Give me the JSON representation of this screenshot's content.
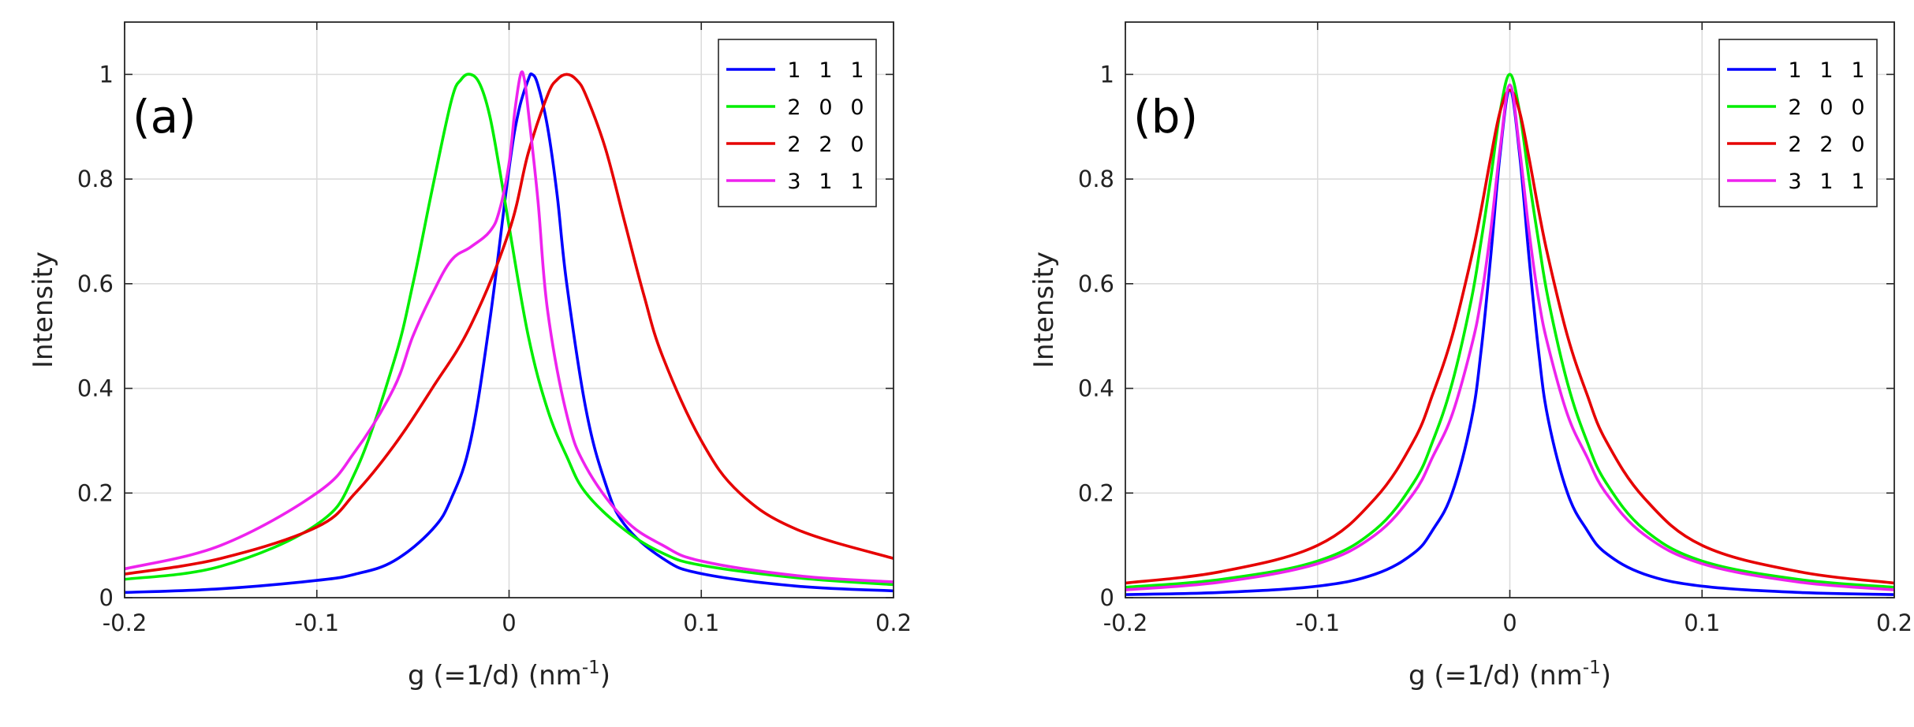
{
  "chart_data": [
    {
      "type": "line",
      "panel_label": "(a)",
      "xlabel": "g (=1/d) (nm",
      "xlabel_sup": "-1",
      "xlabel_end": ")",
      "ylabel": "Intensity",
      "xlim": [
        -0.2,
        0.2
      ],
      "ylim": [
        0,
        1.1
      ],
      "xticks": [
        -0.2,
        -0.1,
        0,
        0.1,
        0.2
      ],
      "xtick_labels": [
        "-0.2",
        "-0.1",
        "0",
        "0.1",
        "0.2"
      ],
      "yticks": [
        0,
        0.2,
        0.4,
        0.6,
        0.8,
        1
      ],
      "ytick_labels": [
        "0",
        "0.2",
        "0.4",
        "0.6",
        "0.8",
        "1"
      ],
      "grid": true,
      "legend_position": "top-right",
      "series": [
        {
          "name": "1  1  1",
          "label_parts": [
            "1",
            "1",
            "1"
          ],
          "color": "#0000ff",
          "x": [
            -0.2,
            -0.15,
            -0.1,
            -0.08,
            -0.06,
            -0.04,
            -0.03,
            -0.02,
            -0.01,
            0,
            0.005,
            0.01,
            0.012,
            0.015,
            0.02,
            0.025,
            0.03,
            0.04,
            0.05,
            0.06,
            0.08,
            0.1,
            0.15,
            0.2
          ],
          "y": [
            0.01,
            0.017,
            0.033,
            0.045,
            0.07,
            0.13,
            0.19,
            0.3,
            0.53,
            0.82,
            0.93,
            0.99,
            1.0,
            0.98,
            0.9,
            0.77,
            0.6,
            0.36,
            0.22,
            0.14,
            0.075,
            0.046,
            0.022,
            0.013
          ]
        },
        {
          "name": "2  0  0",
          "label_parts": [
            "2",
            "0",
            "0"
          ],
          "color": "#00ee00",
          "x": [
            -0.2,
            -0.15,
            -0.1,
            -0.08,
            -0.06,
            -0.05,
            -0.04,
            -0.03,
            -0.025,
            -0.02,
            -0.015,
            -0.01,
            -0.005,
            0,
            0.01,
            0.02,
            0.03,
            0.04,
            0.06,
            0.08,
            0.1,
            0.15,
            0.2
          ],
          "y": [
            0.035,
            0.06,
            0.14,
            0.24,
            0.45,
            0.6,
            0.78,
            0.95,
            0.99,
            1.0,
            0.98,
            0.92,
            0.82,
            0.71,
            0.5,
            0.36,
            0.27,
            0.2,
            0.13,
            0.085,
            0.062,
            0.038,
            0.025
          ]
        },
        {
          "name": "2  2  0",
          "label_parts": [
            "2",
            "2",
            "0"
          ],
          "color": "#e60000",
          "x": [
            -0.2,
            -0.15,
            -0.1,
            -0.08,
            -0.06,
            -0.04,
            -0.02,
            0,
            0.01,
            0.02,
            0.025,
            0.03,
            0.035,
            0.04,
            0.05,
            0.06,
            0.07,
            0.08,
            0.1,
            0.12,
            0.15,
            0.2
          ],
          "y": [
            0.045,
            0.075,
            0.135,
            0.2,
            0.29,
            0.4,
            0.52,
            0.7,
            0.85,
            0.96,
            0.99,
            1.0,
            0.99,
            0.96,
            0.86,
            0.72,
            0.58,
            0.46,
            0.3,
            0.2,
            0.13,
            0.075
          ]
        },
        {
          "name": "3  1  1",
          "label_parts": [
            "3",
            "1",
            "1"
          ],
          "color": "#ee22ee",
          "x": [
            -0.2,
            -0.15,
            -0.1,
            -0.08,
            -0.06,
            -0.05,
            -0.04,
            -0.03,
            -0.02,
            -0.01,
            -0.005,
            0,
            0.003,
            0.006,
            0.008,
            0.01,
            0.015,
            0.02,
            0.03,
            0.04,
            0.06,
            0.08,
            0.1,
            0.15,
            0.2
          ],
          "y": [
            0.055,
            0.1,
            0.2,
            0.28,
            0.4,
            0.5,
            0.58,
            0.645,
            0.67,
            0.7,
            0.74,
            0.83,
            0.93,
            1.0,
            0.99,
            0.93,
            0.76,
            0.55,
            0.35,
            0.25,
            0.15,
            0.1,
            0.07,
            0.042,
            0.03
          ]
        }
      ]
    },
    {
      "type": "line",
      "panel_label": "(b)",
      "xlabel": "g (=1/d) (nm",
      "xlabel_sup": "-1",
      "xlabel_end": ")",
      "ylabel": "Intensity",
      "xlim": [
        -0.2,
        0.2
      ],
      "ylim": [
        0,
        1.1
      ],
      "xticks": [
        -0.2,
        -0.1,
        0,
        0.1,
        0.2
      ],
      "xtick_labels": [
        "-0.2",
        "-0.1",
        "0",
        "0.1",
        "0.2"
      ],
      "yticks": [
        0,
        0.2,
        0.4,
        0.6,
        0.8,
        1
      ],
      "ytick_labels": [
        "0",
        "0.2",
        "0.4",
        "0.6",
        "0.8",
        "1"
      ],
      "grid": true,
      "legend_position": "top-right",
      "series": [
        {
          "name": "1  1  1",
          "label_parts": [
            "1",
            "1",
            "1"
          ],
          "color": "#0000ff",
          "x": [
            -0.2,
            -0.15,
            -0.1,
            -0.07,
            -0.05,
            -0.04,
            -0.03,
            -0.02,
            -0.015,
            -0.01,
            -0.005,
            0,
            0.005,
            0.01,
            0.015,
            0.02,
            0.03,
            0.04,
            0.05,
            0.07,
            0.1,
            0.15,
            0.2
          ],
          "y": [
            0.006,
            0.01,
            0.022,
            0.045,
            0.085,
            0.13,
            0.2,
            0.34,
            0.47,
            0.65,
            0.85,
            0.97,
            0.85,
            0.65,
            0.47,
            0.34,
            0.2,
            0.13,
            0.085,
            0.045,
            0.022,
            0.01,
            0.006
          ]
        },
        {
          "name": "2  0  0",
          "label_parts": [
            "2",
            "0",
            "0"
          ],
          "color": "#00ee00",
          "x": [
            -0.2,
            -0.15,
            -0.1,
            -0.07,
            -0.05,
            -0.04,
            -0.03,
            -0.02,
            -0.015,
            -0.01,
            -0.005,
            0,
            0.005,
            0.01,
            0.015,
            0.02,
            0.03,
            0.04,
            0.05,
            0.07,
            0.1,
            0.15,
            0.2
          ],
          "y": [
            0.02,
            0.035,
            0.07,
            0.13,
            0.22,
            0.3,
            0.41,
            0.57,
            0.68,
            0.8,
            0.93,
            1.0,
            0.93,
            0.8,
            0.68,
            0.57,
            0.41,
            0.3,
            0.22,
            0.13,
            0.07,
            0.035,
            0.02
          ]
        },
        {
          "name": "2  2  0",
          "label_parts": [
            "2",
            "2",
            "0"
          ],
          "color": "#e60000",
          "x": [
            -0.2,
            -0.15,
            -0.1,
            -0.07,
            -0.05,
            -0.04,
            -0.03,
            -0.02,
            -0.015,
            -0.01,
            -0.005,
            0,
            0.005,
            0.01,
            0.015,
            0.02,
            0.03,
            0.04,
            0.05,
            0.07,
            0.1,
            0.15,
            0.2
          ],
          "y": [
            0.028,
            0.05,
            0.1,
            0.19,
            0.3,
            0.39,
            0.5,
            0.65,
            0.74,
            0.84,
            0.93,
            0.97,
            0.93,
            0.84,
            0.74,
            0.65,
            0.5,
            0.39,
            0.3,
            0.19,
            0.1,
            0.05,
            0.028
          ]
        },
        {
          "name": "3  1  1",
          "label_parts": [
            "3",
            "1",
            "1"
          ],
          "color": "#ee22ee",
          "x": [
            -0.2,
            -0.15,
            -0.1,
            -0.07,
            -0.05,
            -0.04,
            -0.03,
            -0.02,
            -0.015,
            -0.01,
            -0.005,
            0,
            0.005,
            0.01,
            0.015,
            0.02,
            0.03,
            0.04,
            0.05,
            0.07,
            0.1,
            0.15,
            0.2
          ],
          "y": [
            0.015,
            0.03,
            0.065,
            0.12,
            0.2,
            0.27,
            0.35,
            0.48,
            0.57,
            0.7,
            0.86,
            0.98,
            0.86,
            0.7,
            0.57,
            0.48,
            0.35,
            0.27,
            0.2,
            0.12,
            0.065,
            0.03,
            0.015
          ]
        }
      ]
    }
  ]
}
